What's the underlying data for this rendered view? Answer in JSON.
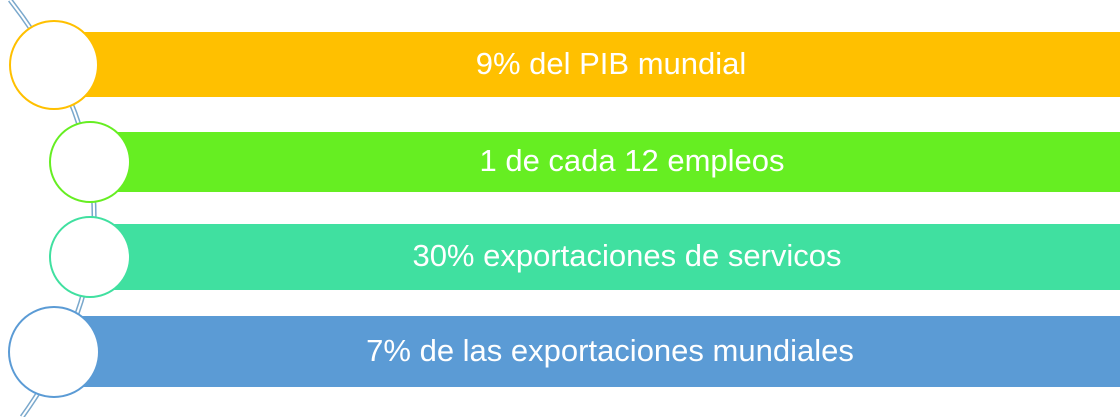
{
  "items": [
    {
      "label": "9% del PIB mundial"
    },
    {
      "label": "1 de cada 12 empleos"
    },
    {
      "label": "30% exportaciones de servicos"
    },
    {
      "label": "7% de las exportaciones mundiales"
    }
  ]
}
